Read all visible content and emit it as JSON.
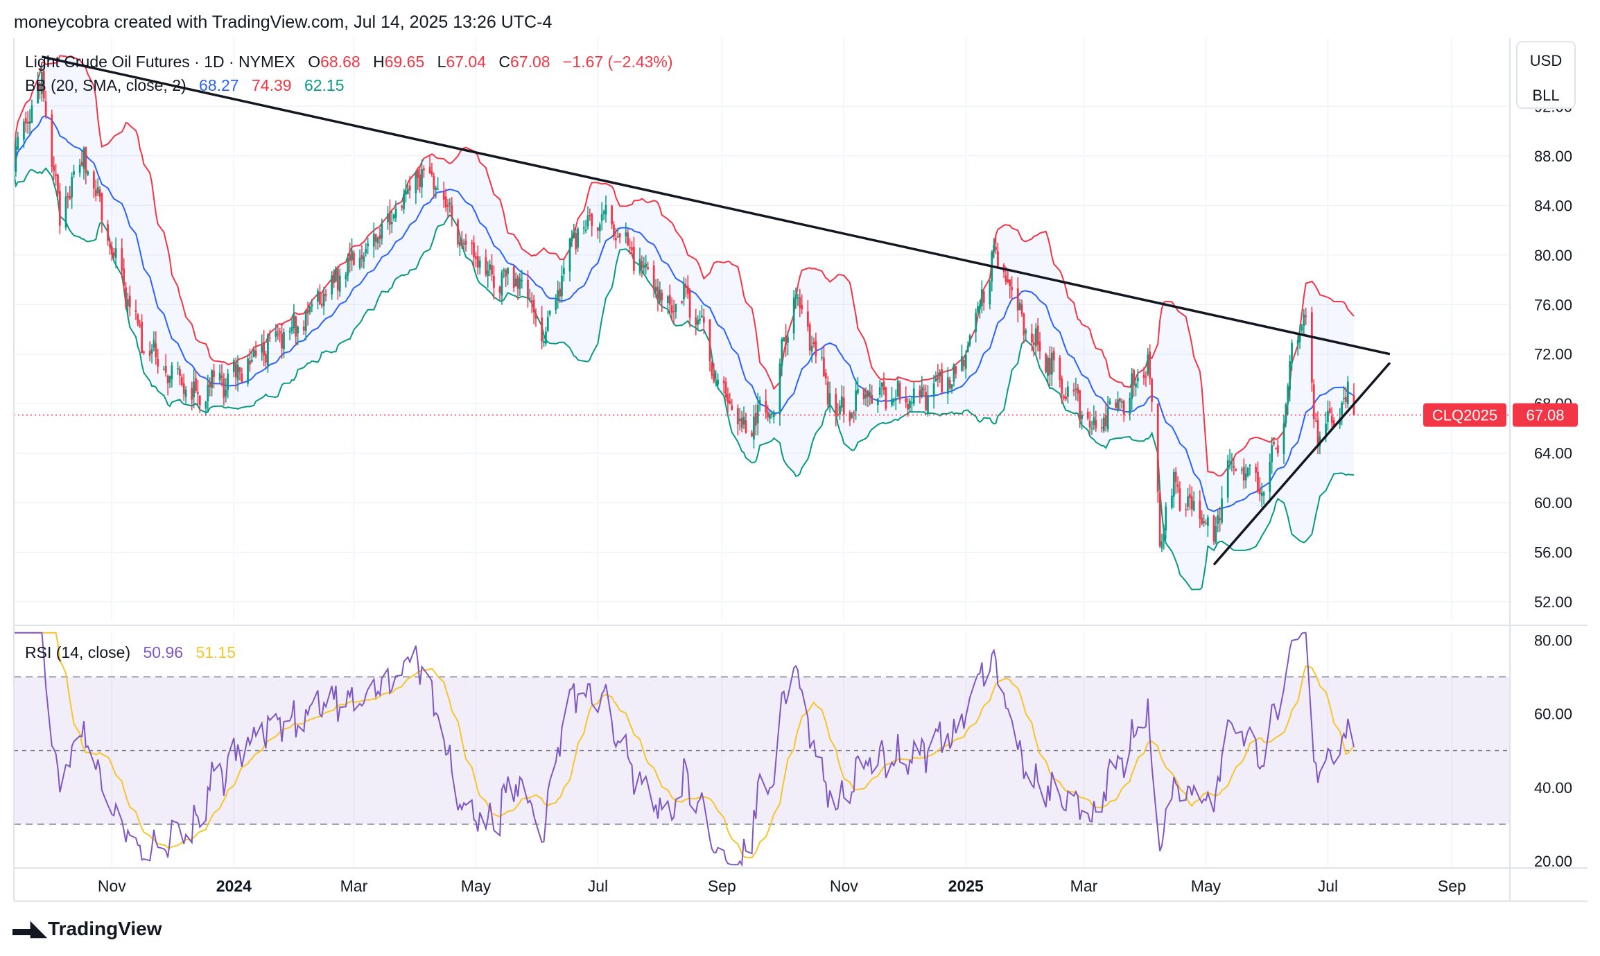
{
  "header": {
    "attribution": "moneycobra created with TradingView.com, Jul 14, 2025 13:26 UTC-4"
  },
  "legend": {
    "symbol": "Light Crude Oil Futures · 1D · NYMEX",
    "open_label": "O",
    "open": "68.68",
    "high_label": "H",
    "high": "69.65",
    "low_label": "L",
    "low": "67.04",
    "close_label": "C",
    "close": "67.08",
    "change": "−1.67 (−2.43%)",
    "bb_label": "BB (20, SMA, close, 2)",
    "bb_mid": "68.27",
    "bb_upper": "74.39",
    "bb_lower": "62.15",
    "rsi_label": "RSI (14, close)",
    "rsi_value": "50.96",
    "rsi_ma": "51.15"
  },
  "price_scale": {
    "currency": "USD",
    "unit": "BLL",
    "price_tag_label": "CLQ2025",
    "price_tag_value": "67.08"
  },
  "footer": {
    "brand": "TradingView"
  },
  "colors": {
    "up": "#089981",
    "down": "#f23645",
    "bb_upper": "#f23645",
    "bb_lower": "#089981",
    "bb_mid": "#2962ff",
    "rsi": "#7e57c2",
    "rsi_ma": "#f7c52b",
    "trendline": "#131722"
  },
  "chart_data": [
    {
      "type": "candlestick",
      "title": "Light Crude Oil Futures · 1D · NYMEX",
      "ylim": [
        50.5,
        97.5
      ],
      "y_ticks": [
        "92.00",
        "88.00",
        "84.00",
        "80.00",
        "76.00",
        "72.00",
        "68.00",
        "64.00",
        "60.00",
        "56.00",
        "52.00"
      ],
      "y_tick_values": [
        92,
        88,
        84,
        80,
        76,
        72,
        68,
        64,
        60,
        56,
        52
      ],
      "x_range": [
        "2023-09-13",
        "2025-09-30"
      ],
      "x_ticks": [
        {
          "label": "Nov",
          "date": "2023-11-01",
          "bold": false
        },
        {
          "label": "2024",
          "date": "2024-01-01",
          "bold": true
        },
        {
          "label": "Mar",
          "date": "2024-03-01",
          "bold": false
        },
        {
          "label": "May",
          "date": "2024-05-01",
          "bold": false
        },
        {
          "label": "Jul",
          "date": "2024-07-01",
          "bold": false
        },
        {
          "label": "Sep",
          "date": "2024-09-01",
          "bold": false
        },
        {
          "label": "Nov",
          "date": "2024-11-01",
          "bold": false
        },
        {
          "label": "2025",
          "date": "2025-01-01",
          "bold": true
        },
        {
          "label": "Mar",
          "date": "2025-03-01",
          "bold": false
        },
        {
          "label": "May",
          "date": "2025-05-01",
          "bold": false
        },
        {
          "label": "Jul",
          "date": "2025-07-01",
          "bold": false
        },
        {
          "label": "Sep",
          "date": "2025-09-01",
          "bold": false
        }
      ],
      "close_anchors": [
        [
          "2023-09-13",
          87.5
        ],
        [
          "2023-09-27",
          93.7
        ],
        [
          "2023-10-06",
          82.8
        ],
        [
          "2023-10-18",
          88.3
        ],
        [
          "2023-11-01",
          80.4
        ],
        [
          "2023-11-16",
          72.9
        ],
        [
          "2023-12-06",
          69.4
        ],
        [
          "2023-12-13",
          68.6
        ],
        [
          "2024-01-02",
          70.4
        ],
        [
          "2024-01-16",
          72.4
        ],
        [
          "2024-02-01",
          74.0
        ],
        [
          "2024-03-01",
          79.9
        ],
        [
          "2024-03-19",
          82.7
        ],
        [
          "2024-04-05",
          86.9
        ],
        [
          "2024-04-12",
          85.7
        ],
        [
          "2024-04-22",
          82.0
        ],
        [
          "2024-05-06",
          78.5
        ],
        [
          "2024-05-24",
          77.7
        ],
        [
          "2024-06-04",
          73.3
        ],
        [
          "2024-06-19",
          81.6
        ],
        [
          "2024-07-05",
          83.2
        ],
        [
          "2024-07-19",
          80.1
        ],
        [
          "2024-08-07",
          75.2
        ],
        [
          "2024-08-14",
          77.0
        ],
        [
          "2024-09-10",
          65.8
        ],
        [
          "2024-09-27",
          68.2
        ],
        [
          "2024-10-07",
          77.1
        ],
        [
          "2024-10-28",
          67.4
        ],
        [
          "2024-11-14",
          68.7
        ],
        [
          "2024-12-10",
          68.6
        ],
        [
          "2024-12-30",
          71.0
        ],
        [
          "2025-01-15",
          80.0
        ],
        [
          "2025-02-03",
          73.2
        ],
        [
          "2025-02-14",
          70.7
        ],
        [
          "2025-03-05",
          66.3
        ],
        [
          "2025-03-21",
          68.3
        ],
        [
          "2025-04-02",
          71.7
        ],
        [
          "2025-04-08",
          57.6
        ],
        [
          "2025-04-15",
          61.3
        ],
        [
          "2025-05-05",
          57.1
        ],
        [
          "2025-05-13",
          63.6
        ],
        [
          "2025-05-30",
          60.8
        ],
        [
          "2025-06-11",
          68.2
        ],
        [
          "2025-06-13",
          72.98
        ],
        [
          "2025-06-20",
          75.1
        ],
        [
          "2025-06-23",
          68.5
        ],
        [
          "2025-06-26",
          65.2
        ],
        [
          "2025-07-03",
          67.0
        ],
        [
          "2025-07-11",
          68.5
        ],
        [
          "2025-07-14",
          67.08
        ]
      ],
      "last": {
        "open": 68.68,
        "high": 69.65,
        "low": 67.04,
        "close": 67.08
      },
      "bollinger": {
        "period": 20,
        "type": "SMA",
        "source": "close",
        "stddev": 2,
        "last_mid": 68.27,
        "last_upper": 74.39,
        "last_lower": 62.15
      },
      "trendlines": [
        {
          "from": [
            "2023-09-27",
            96.0
          ],
          "to": [
            "2025-08-01",
            72.0
          ]
        },
        {
          "from": [
            "2025-05-05",
            55.0
          ],
          "to": [
            "2025-08-01",
            71.3
          ]
        }
      ],
      "last_price_line": 67.08
    },
    {
      "type": "line",
      "title": "RSI (14, close)",
      "ylim": [
        18.5,
        82.5
      ],
      "y_ticks": [
        "80.00",
        "60.00",
        "40.00",
        "20.00"
      ],
      "y_tick_values": [
        80,
        60,
        40,
        20
      ],
      "band": [
        30,
        70
      ],
      "midline": 50,
      "last_rsi": 50.96,
      "last_rsi_ma": 51.15,
      "series": [
        {
          "name": "RSI",
          "values": "computed-from-close"
        },
        {
          "name": "RSI-based MA",
          "values": "computed-from-RSI"
        }
      ]
    }
  ]
}
